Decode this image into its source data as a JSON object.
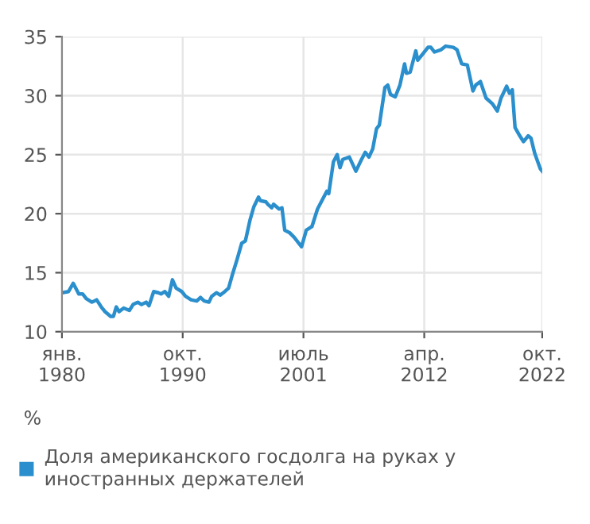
{
  "chart_data": {
    "type": "line",
    "ylabel": "%",
    "legend": "bottom",
    "grid": true,
    "marker": "none",
    "line_style": "solid",
    "xlim": [
      "1980-01",
      "2022-10"
    ],
    "xticks": [
      {
        "value": "1980-01",
        "label": "янв.\n1980"
      },
      {
        "value": "1990-10",
        "label": "окт.\n1990"
      },
      {
        "value": "2001-07",
        "label": "июль\n2001"
      },
      {
        "value": "2012-04",
        "label": "апр.\n2012"
      },
      {
        "value": "2022-10",
        "label": "окт.\n2022"
      }
    ],
    "ylim": [
      10,
      35
    ],
    "yticks": [
      10,
      15,
      20,
      25,
      30,
      35
    ],
    "x": [
      "1980-01",
      "1980-08",
      "1981-01",
      "1981-07",
      "1981-11",
      "1982-03",
      "1982-09",
      "1983-02",
      "1983-07",
      "1983-11",
      "1984-05",
      "1984-08",
      "1984-11",
      "1985-02",
      "1985-07",
      "1986-01",
      "1986-05",
      "1986-10",
      "1987-02",
      "1987-07",
      "1987-10",
      "1988-03",
      "1988-08",
      "1988-11",
      "1989-03",
      "1989-07",
      "1989-11",
      "1990-03",
      "1990-09",
      "1991-01",
      "1991-07",
      "1992-01",
      "1992-05",
      "1992-09",
      "1993-02",
      "1993-05",
      "1993-10",
      "1994-02",
      "1994-07",
      "1994-11",
      "1995-03",
      "1995-08",
      "1996-01",
      "1996-05",
      "1996-10",
      "1997-02",
      "1997-07",
      "1997-09",
      "1998-03",
      "1998-05",
      "1998-09",
      "1998-11",
      "1999-05",
      "1999-08",
      "1999-11",
      "2000-04",
      "2000-09",
      "2001-05",
      "2001-10",
      "2002-04",
      "2002-10",
      "2003-04",
      "2003-08",
      "2003-10",
      "2004-03",
      "2004-07",
      "2004-10",
      "2005-01",
      "2005-08",
      "2006-03",
      "2006-09",
      "2007-01",
      "2007-05",
      "2007-09",
      "2008-01",
      "2008-04",
      "2008-10",
      "2009-01",
      "2009-04",
      "2009-09",
      "2010-02",
      "2010-07",
      "2010-09",
      "2011-01",
      "2011-07",
      "2011-09",
      "2012-03",
      "2012-08",
      "2012-11",
      "2013-03",
      "2013-10",
      "2014-03",
      "2014-11",
      "2015-03",
      "2015-08",
      "2016-02",
      "2016-08",
      "2016-11",
      "2017-04",
      "2017-10",
      "2018-05",
      "2018-10",
      "2019-02",
      "2019-08",
      "2019-11",
      "2020-02",
      "2020-05",
      "2020-10",
      "2021-02",
      "2021-07",
      "2021-10",
      "2022-02",
      "2022-08",
      "2022-10"
    ],
    "series": [
      {
        "name": "Доля американского госдолга на руках у иностранных держателей",
        "color": "#2a8fcc",
        "values": [
          13.3,
          13.4,
          14.1,
          13.2,
          13.2,
          12.8,
          12.5,
          12.7,
          12.1,
          11.7,
          11.3,
          11.3,
          12.1,
          11.7,
          12.0,
          11.8,
          12.3,
          12.5,
          12.3,
          12.5,
          12.2,
          13.4,
          13.3,
          13.2,
          13.4,
          13.0,
          14.4,
          13.7,
          13.4,
          13.0,
          12.7,
          12.6,
          12.9,
          12.6,
          12.5,
          13.0,
          13.3,
          13.1,
          13.4,
          13.7,
          14.8,
          16.1,
          17.5,
          17.7,
          19.5,
          20.6,
          21.4,
          21.1,
          21.0,
          20.8,
          20.5,
          20.8,
          20.4,
          20.5,
          18.6,
          18.4,
          18.0,
          17.2,
          18.6,
          18.9,
          20.4,
          21.3,
          21.9,
          21.7,
          24.4,
          25.0,
          23.9,
          24.6,
          24.8,
          23.6,
          24.6,
          25.2,
          24.8,
          25.5,
          27.2,
          27.5,
          30.7,
          30.9,
          30.1,
          29.9,
          30.9,
          32.7,
          31.9,
          32.0,
          33.8,
          33.0,
          33.6,
          34.1,
          34.1,
          33.7,
          33.9,
          34.2,
          34.1,
          33.9,
          32.7,
          32.6,
          30.4,
          30.9,
          31.2,
          29.8,
          29.3,
          28.7,
          29.8,
          30.8,
          30.2,
          30.5,
          27.3,
          26.6,
          26.1,
          26.6,
          26.4,
          25.1,
          23.8,
          23.6
        ]
      }
    ]
  }
}
